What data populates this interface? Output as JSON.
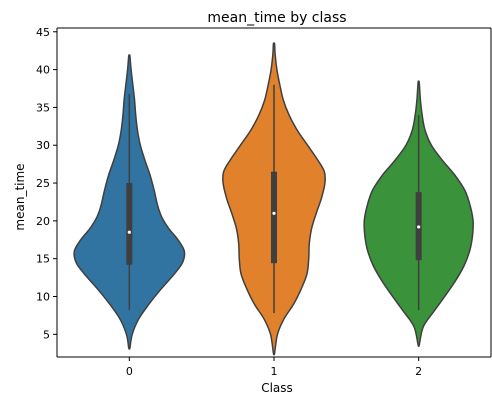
{
  "chart_data": {
    "type": "violin",
    "title": "mean_time by class",
    "xlabel": "Class",
    "ylabel": "mean_time",
    "categories": [
      "0",
      "1",
      "2"
    ],
    "ylim": [
      2,
      45.5
    ],
    "yticks": [
      5,
      10,
      15,
      20,
      25,
      30,
      35,
      40,
      45
    ],
    "grid": false,
    "violins": [
      {
        "category": "0",
        "color": "#3274a1",
        "min": 8.2,
        "q1": 14.2,
        "median": 18.5,
        "q3": 25.0,
        "max": 36.8,
        "extent": [
          3.2,
          41.8
        ],
        "density": [
          [
            3.2,
            0.01
          ],
          [
            5,
            0.05
          ],
          [
            7,
            0.16
          ],
          [
            9,
            0.34
          ],
          [
            11,
            0.55
          ],
          [
            13,
            0.78
          ],
          [
            14.5,
            0.92
          ],
          [
            16,
            0.95
          ],
          [
            17.5,
            0.84
          ],
          [
            19,
            0.68
          ],
          [
            20.5,
            0.56
          ],
          [
            22,
            0.49
          ],
          [
            24,
            0.43
          ],
          [
            26,
            0.36
          ],
          [
            28,
            0.27
          ],
          [
            30,
            0.19
          ],
          [
            32,
            0.14
          ],
          [
            34,
            0.11
          ],
          [
            36,
            0.09
          ],
          [
            38,
            0.06
          ],
          [
            40,
            0.03
          ],
          [
            41.8,
            0.01
          ]
        ]
      },
      {
        "category": "1",
        "color": "#e1812c",
        "min": 7.8,
        "q1": 14.4,
        "median": 21.0,
        "q3": 26.5,
        "max": 38.0,
        "extent": [
          2.5,
          43.4
        ],
        "density": [
          [
            2.5,
            0.01
          ],
          [
            5,
            0.06
          ],
          [
            7,
            0.17
          ],
          [
            9,
            0.34
          ],
          [
            11,
            0.47
          ],
          [
            13,
            0.57
          ],
          [
            15,
            0.6
          ],
          [
            17,
            0.61
          ],
          [
            19,
            0.65
          ],
          [
            21,
            0.73
          ],
          [
            23,
            0.82
          ],
          [
            25,
            0.88
          ],
          [
            26.5,
            0.87
          ],
          [
            28,
            0.76
          ],
          [
            30,
            0.58
          ],
          [
            32,
            0.4
          ],
          [
            34,
            0.26
          ],
          [
            36,
            0.16
          ],
          [
            38,
            0.1
          ],
          [
            40,
            0.05
          ],
          [
            42,
            0.02
          ],
          [
            43.4,
            0.01
          ]
        ]
      },
      {
        "category": "2",
        "color": "#3a923a",
        "min": 8.2,
        "q1": 14.8,
        "median": 19.2,
        "q3": 23.8,
        "max": 34.0,
        "extent": [
          3.6,
          38.3
        ],
        "density": [
          [
            3.6,
            0.01
          ],
          [
            6,
            0.08
          ],
          [
            8,
            0.26
          ],
          [
            10,
            0.45
          ],
          [
            12,
            0.63
          ],
          [
            14,
            0.78
          ],
          [
            16,
            0.88
          ],
          [
            18,
            0.93
          ],
          [
            20,
            0.94
          ],
          [
            22,
            0.89
          ],
          [
            24,
            0.8
          ],
          [
            26,
            0.63
          ],
          [
            28,
            0.41
          ],
          [
            30,
            0.22
          ],
          [
            32,
            0.11
          ],
          [
            34,
            0.06
          ],
          [
            36,
            0.03
          ],
          [
            38.3,
            0.01
          ]
        ]
      }
    ]
  }
}
